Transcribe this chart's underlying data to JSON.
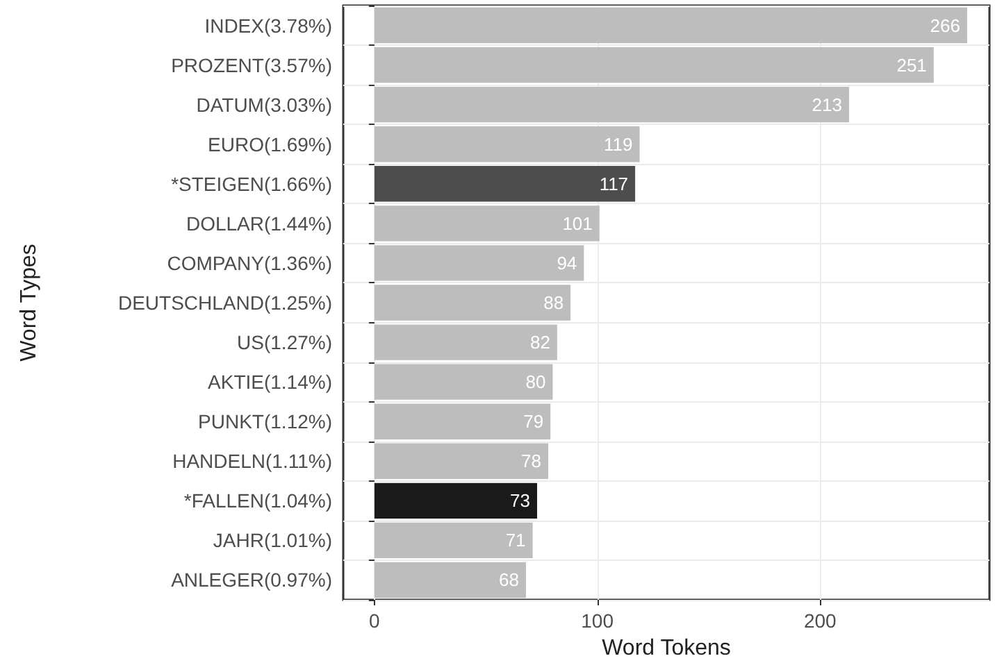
{
  "chart_data": {
    "type": "bar",
    "orientation": "horizontal",
    "xlabel": "Word Tokens",
    "ylabel": "Word Types",
    "categories": [
      "INDEX(3.78%)",
      "PROZENT(3.57%)",
      "DATUM(3.03%)",
      "EURO(1.69%)",
      "*STEIGEN(1.66%)",
      "DOLLAR(1.44%)",
      "COMPANY(1.36%)",
      "DEUTSCHLAND(1.25%)",
      "US(1.27%)",
      "AKTIE(1.14%)",
      "PUNKT(1.12%)",
      "HANDELN(1.11%)",
      "*FALLEN(1.04%)",
      "JAHR(1.01%)",
      "ANLEGER(0.97%)"
    ],
    "values": [
      266,
      251,
      213,
      119,
      117,
      101,
      94,
      88,
      82,
      80,
      79,
      78,
      73,
      71,
      68
    ],
    "colors": [
      "#bdbdbd",
      "#bdbdbd",
      "#bdbdbd",
      "#bdbdbd",
      "#4d4d4d",
      "#bdbdbd",
      "#bdbdbd",
      "#bdbdbd",
      "#bdbdbd",
      "#bdbdbd",
      "#bdbdbd",
      "#bdbdbd",
      "#1a1a1a",
      "#bdbdbd",
      "#bdbdbd"
    ],
    "xlim": [
      -14,
      276
    ],
    "xticks": [
      0,
      100,
      200
    ],
    "grid": true,
    "data_labels": true
  }
}
